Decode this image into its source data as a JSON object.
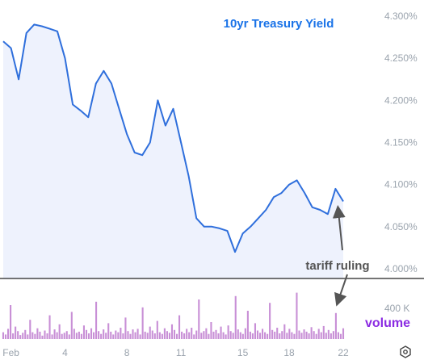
{
  "chart_data": [
    {
      "type": "area",
      "title": "10yr Treasury Yield",
      "x_ticks": [
        "Feb",
        "4",
        "8",
        "11",
        "15",
        "18",
        "22"
      ],
      "y_ticks": [
        "4.000%",
        "4.050%",
        "4.100%",
        "4.150%",
        "4.200%",
        "4.250%",
        "4.300%"
      ],
      "ylim": [
        4.0,
        4.3
      ],
      "grid": false,
      "colors": {
        "line": "#2f6fdc",
        "fill": "#eef2fd",
        "title": "#1a73e8"
      },
      "x": [
        0,
        0.5,
        1,
        1.5,
        2,
        2.5,
        3,
        3.5,
        4,
        4.5,
        5,
        5.5,
        6,
        6.5,
        7,
        7.5,
        8,
        8.5,
        9,
        9.5,
        10,
        10.5,
        11,
        11.5,
        12,
        12.5,
        13,
        13.5,
        14,
        14.5,
        15,
        15.5,
        16,
        16.5,
        17,
        17.5,
        18,
        18.5,
        19,
        19.5,
        20,
        20.5,
        21,
        21.5,
        22
      ],
      "values": [
        4.27,
        4.262,
        4.225,
        4.28,
        4.29,
        4.288,
        4.285,
        4.282,
        4.25,
        4.195,
        4.188,
        4.18,
        4.22,
        4.235,
        4.22,
        4.19,
        4.16,
        4.138,
        4.135,
        4.15,
        4.2,
        4.17,
        4.19,
        4.15,
        4.11,
        4.06,
        4.05,
        4.05,
        4.048,
        4.045,
        4.02,
        4.042,
        4.05,
        4.06,
        4.07,
        4.085,
        4.09,
        4.1,
        4.105,
        4.09,
        4.073,
        4.07,
        4.065,
        4.095,
        4.08
      ],
      "annotations": [
        {
          "label": "tariff ruling",
          "x": 21.5,
          "y": 4.072
        }
      ]
    },
    {
      "type": "bar",
      "label": "volume",
      "y_ticks": [
        "400 K"
      ],
      "ylim": [
        0,
        500000
      ],
      "color": "#c88fd6",
      "label_color": "#8b2be2",
      "x_start": 0,
      "x_end": 22,
      "values": [
        60000,
        40000,
        90000,
        300000,
        50000,
        110000,
        70000,
        35000,
        55000,
        80000,
        40000,
        170000,
        60000,
        45000,
        95000,
        65000,
        30000,
        75000,
        50000,
        210000,
        40000,
        85000,
        60000,
        130000,
        45000,
        55000,
        70000,
        40000,
        240000,
        90000,
        55000,
        65000,
        45000,
        120000,
        80000,
        50000,
        95000,
        60000,
        330000,
        70000,
        45000,
        85000,
        55000,
        140000,
        65000,
        40000,
        75000,
        60000,
        100000,
        50000,
        190000,
        70000,
        45000,
        85000,
        60000,
        90000,
        40000,
        280000,
        65000,
        55000,
        110000,
        75000,
        50000,
        160000,
        60000,
        45000,
        95000,
        70000,
        55000,
        130000,
        80000,
        45000,
        210000,
        65000,
        50000,
        90000,
        60000,
        100000,
        40000,
        75000,
        350000,
        55000,
        70000,
        95000,
        45000,
        150000,
        65000,
        80000,
        50000,
        110000,
        60000,
        40000,
        120000,
        70000,
        55000,
        380000,
        85000,
        60000,
        45000,
        95000,
        250000,
        65000,
        50000,
        140000,
        75000,
        55000,
        90000,
        60000,
        45000,
        320000,
        80000,
        65000,
        100000,
        50000,
        70000,
        130000,
        55000,
        90000,
        60000,
        45000,
        410000,
        75000,
        55000,
        85000,
        65000,
        50000,
        105000,
        70000,
        45000,
        90000,
        60000,
        115000,
        55000,
        80000,
        50000,
        70000,
        230000,
        60000,
        45000,
        95000
      ]
    }
  ],
  "controls": {
    "settings_icon": "gear-hexagon-icon"
  }
}
